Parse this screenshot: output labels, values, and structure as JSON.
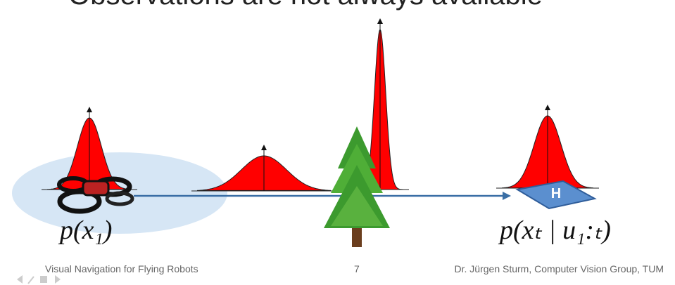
{
  "header": {
    "title": "Observations are not always available"
  },
  "labels": {
    "start": "p(x₁)",
    "end": "p(xₜ | u₁:ₜ)"
  },
  "footer": {
    "course": "Visual Navigation for Flying Robots",
    "page": "7",
    "author": "Dr. Jürgen Sturm, Computer Vision Group, TUM"
  }
}
